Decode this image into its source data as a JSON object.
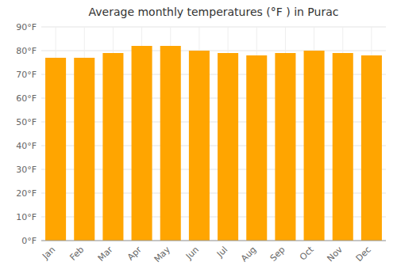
{
  "chart_data": {
    "type": "bar",
    "title": "Average monthly temperatures (°F ) in Purac",
    "categories": [
      "Jan",
      "Feb",
      "Mar",
      "Apr",
      "May",
      "Jun",
      "Jul",
      "Aug",
      "Sep",
      "Oct",
      "Nov",
      "Dec"
    ],
    "values": [
      77,
      77,
      79,
      82,
      82,
      80,
      79,
      78,
      79,
      80,
      79,
      78
    ],
    "color": "#FFA500",
    "ylim": [
      0,
      90
    ],
    "yticks": [
      {
        "value": 0,
        "label": "0°F"
      },
      {
        "value": 10,
        "label": "10°F"
      },
      {
        "value": 20,
        "label": "20°F"
      },
      {
        "value": 30,
        "label": "30°F"
      },
      {
        "value": 40,
        "label": "40°F"
      },
      {
        "value": 50,
        "label": "50°F"
      },
      {
        "value": 60,
        "label": "60°F"
      },
      {
        "value": 70,
        "label": "70°F"
      },
      {
        "value": 80,
        "label": "80°F"
      },
      {
        "value": 90,
        "label": "90°F"
      }
    ],
    "grid": true
  }
}
